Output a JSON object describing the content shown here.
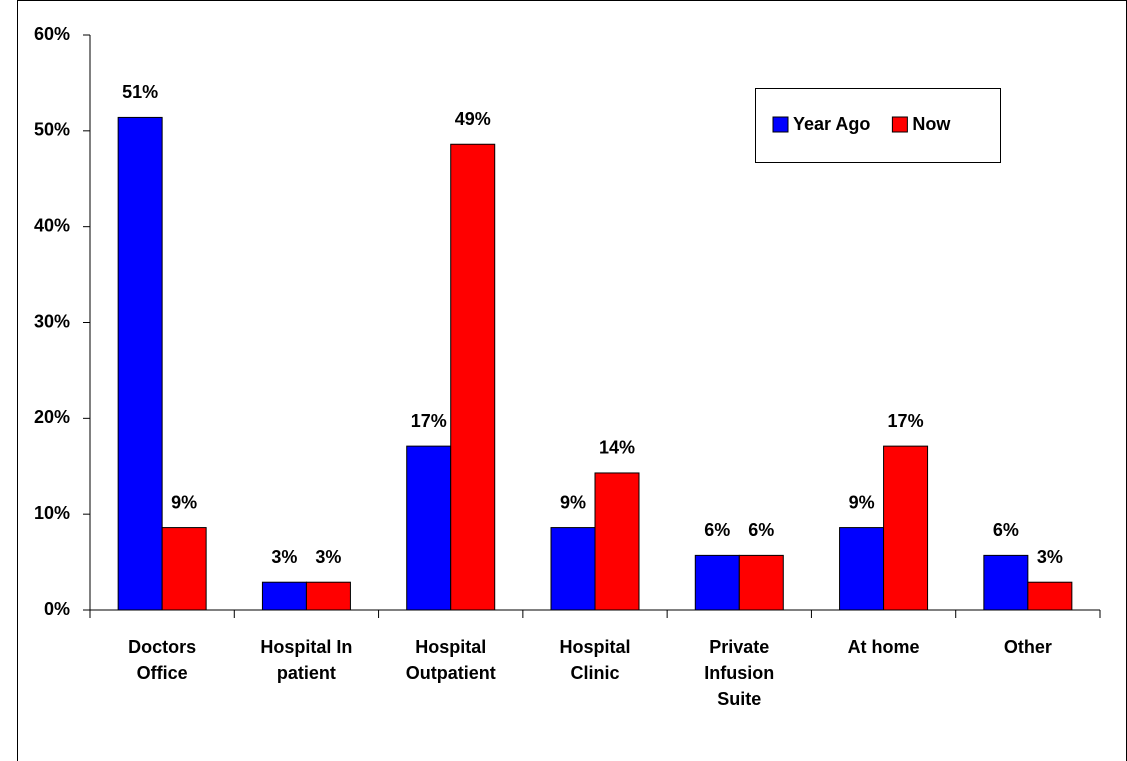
{
  "chart_data": {
    "type": "bar",
    "categories": [
      "Doctors\nOffice",
      "Hospital In\npatient",
      "Hospital\nOutpatient",
      "Hospital\nClinic",
      "Private\nInfusion\nSuite",
      "At home",
      "Other"
    ],
    "series": [
      {
        "name": "Year Ago",
        "color": "#0000ff",
        "values": [
          51.4,
          2.9,
          17.1,
          8.6,
          5.7,
          8.6,
          5.7
        ],
        "value_labels": [
          "51%",
          "3%",
          "17%",
          "9%",
          "6%",
          "9%",
          "6%"
        ]
      },
      {
        "name": "Now",
        "color": "#ff0000",
        "values": [
          8.6,
          2.9,
          48.6,
          14.3,
          5.7,
          17.1,
          2.9
        ],
        "value_labels": [
          "9%",
          "3%",
          "49%",
          "14%",
          "6%",
          "17%",
          "3%"
        ]
      }
    ],
    "ylim": [
      0,
      60
    ],
    "yticks": [
      {
        "value": 0,
        "label": "0%"
      },
      {
        "value": 10,
        "label": "10%"
      },
      {
        "value": 20,
        "label": "20%"
      },
      {
        "value": 30,
        "label": "30%"
      },
      {
        "value": 40,
        "label": "40%"
      },
      {
        "value": 50,
        "label": "50%"
      },
      {
        "value": 60,
        "label": "60%"
      }
    ],
    "legend": "upper right"
  }
}
